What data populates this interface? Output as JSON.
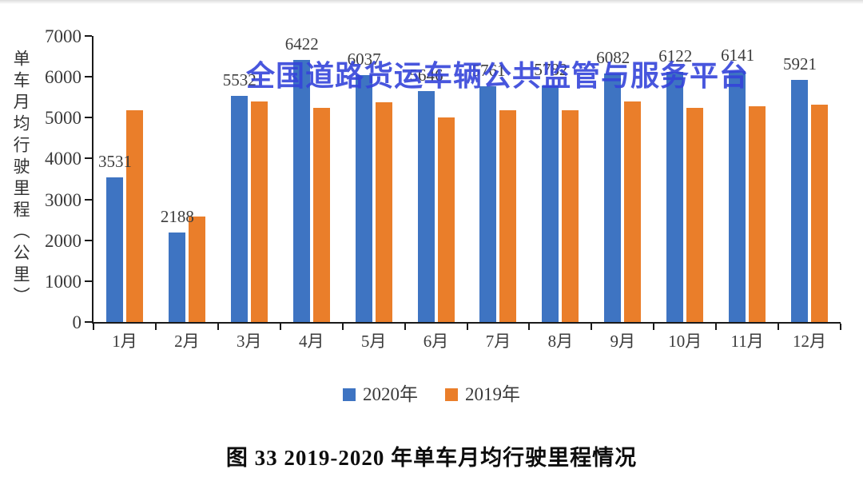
{
  "watermark_text": "全国道路货运车辆公共监管与服务平台",
  "caption": "图 33  2019-2020 年单车月均行驶里程情况",
  "colors": {
    "series_2020": "#3e74c2",
    "series_2019": "#ea7e2a",
    "watermark": "#3544da",
    "axis": "#1a1a1a",
    "label_text": "#3d3d3d"
  },
  "chart_data": {
    "type": "bar",
    "title": "",
    "xlabel": "",
    "ylabel": "单车月均行驶里程（公里）",
    "ylim": [
      0,
      7000
    ],
    "yticks": [
      0,
      1000,
      2000,
      3000,
      4000,
      5000,
      6000,
      7000
    ],
    "grid": false,
    "legend_position": "bottom",
    "categories": [
      "1月",
      "2月",
      "3月",
      "4月",
      "5月",
      "6月",
      "7月",
      "8月",
      "9月",
      "10月",
      "11月",
      "12月"
    ],
    "series": [
      {
        "name": "2020年",
        "color": "#3e74c2",
        "data_labels_shown": true,
        "values": [
          3531,
          2188,
          5532,
          6422,
          6037,
          5646,
          5761,
          5782,
          6082,
          6122,
          6141,
          5921
        ]
      },
      {
        "name": "2019年",
        "color": "#ea7e2a",
        "data_labels_shown": false,
        "values": [
          5190,
          2580,
          5390,
          5235,
          5370,
          5000,
          5175,
          5175,
          5390,
          5235,
          5275,
          5310
        ]
      }
    ]
  }
}
